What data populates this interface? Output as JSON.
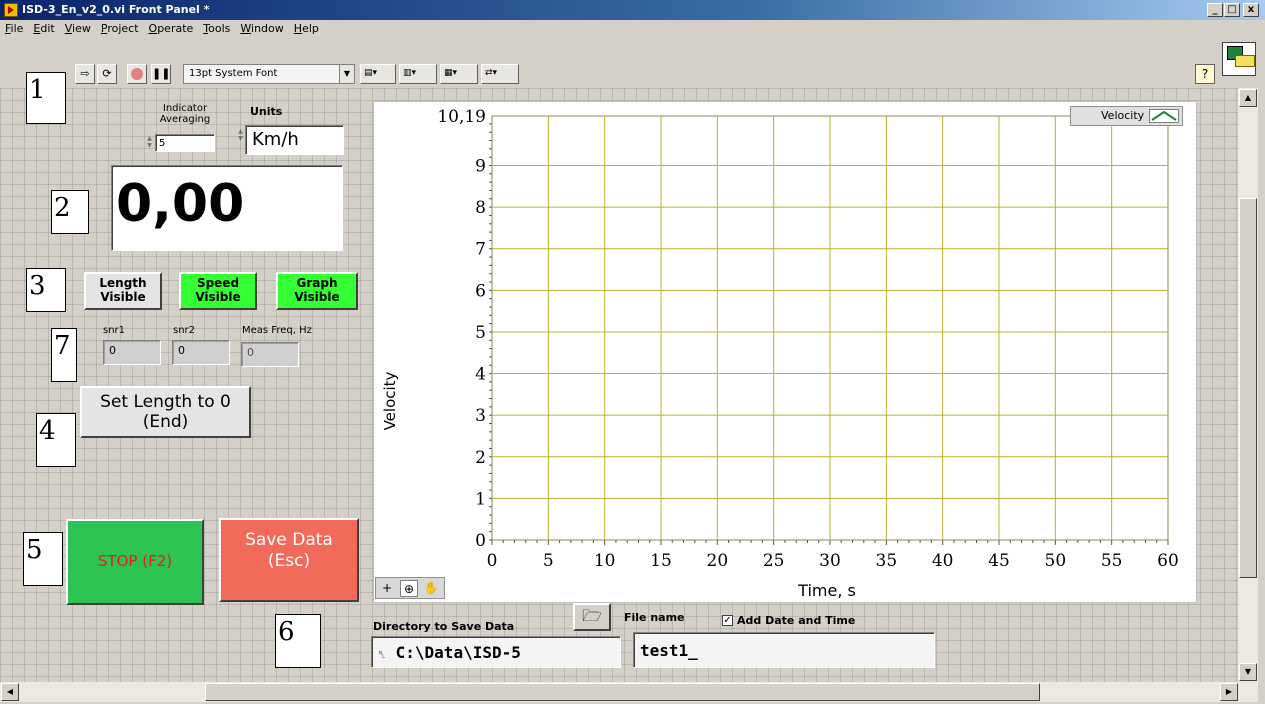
{
  "window": {
    "title": "ISD-3_En_v2_0.vi Front Panel *",
    "controls": {
      "minimize": "_",
      "maximize": "□",
      "close": "x"
    }
  },
  "menu": [
    "File",
    "Edit",
    "View",
    "Project",
    "Operate",
    "Tools",
    "Window",
    "Help"
  ],
  "toolbar": {
    "font": "13pt System Font",
    "help": "?",
    "buttons": [
      "run-arrow-icon",
      "run-continuously-icon",
      "abort-icon",
      "pause-icon",
      "align-objects-icon",
      "distribute-objects-icon",
      "resize-objects-icon",
      "reorder-icon"
    ]
  },
  "number_labels": {
    "n1": "1",
    "n2": "2",
    "n3": "3",
    "n4": "4",
    "n5": "5",
    "n6": "6",
    "n7": "7"
  },
  "controls": {
    "indicator_averaging_label": "Indicator Averaging",
    "indicator_averaging_value": "5",
    "units_label": "Units",
    "units_value": "Km/h",
    "main_display": "0,00",
    "length_visible": "Length Visible",
    "speed_visible": "Speed Visible",
    "graph_visible": "Graph Visible",
    "snr1_label": "snr1",
    "snr1_value": "0",
    "snr2_label": "snr2",
    "snr2_value": "0",
    "meas_freq_label": "Meas Freq, Hz",
    "meas_freq_value": "0",
    "set_length": "Set Length to 0 (End)",
    "stop": "STOP (F2)",
    "save_data": "Save Data (Esc)",
    "directory_label": "Directory to Save Data",
    "directory_value": "C:\\Data\\ISD-5",
    "file_name_label": "File name",
    "file_name_value": "test1_",
    "add_date_time": "Add Date and Time",
    "add_date_time_checked": true
  },
  "colors": {
    "toggle_on": "#33ff33",
    "toggle_off": "#e4e4e4",
    "stop_button": "#2ec454",
    "save_button": "#f26a5a",
    "grid_line": "#b8b030"
  },
  "chart_data": {
    "type": "line",
    "xlabel": "Time, s",
    "ylabel": "Velocity",
    "xlim": [
      0,
      60
    ],
    "ylim": [
      0,
      10.19
    ],
    "x_ticks": [
      "0",
      "5",
      "10",
      "15",
      "20",
      "25",
      "30",
      "35",
      "40",
      "45",
      "50",
      "55",
      "60"
    ],
    "y_ticks": [
      "0",
      "1",
      "2",
      "3",
      "4",
      "5",
      "6",
      "7",
      "8",
      "9",
      "10,19"
    ],
    "series": [
      {
        "name": "Velocity",
        "x": [],
        "y": []
      }
    ],
    "legend_position": "top-right",
    "grid": true
  }
}
